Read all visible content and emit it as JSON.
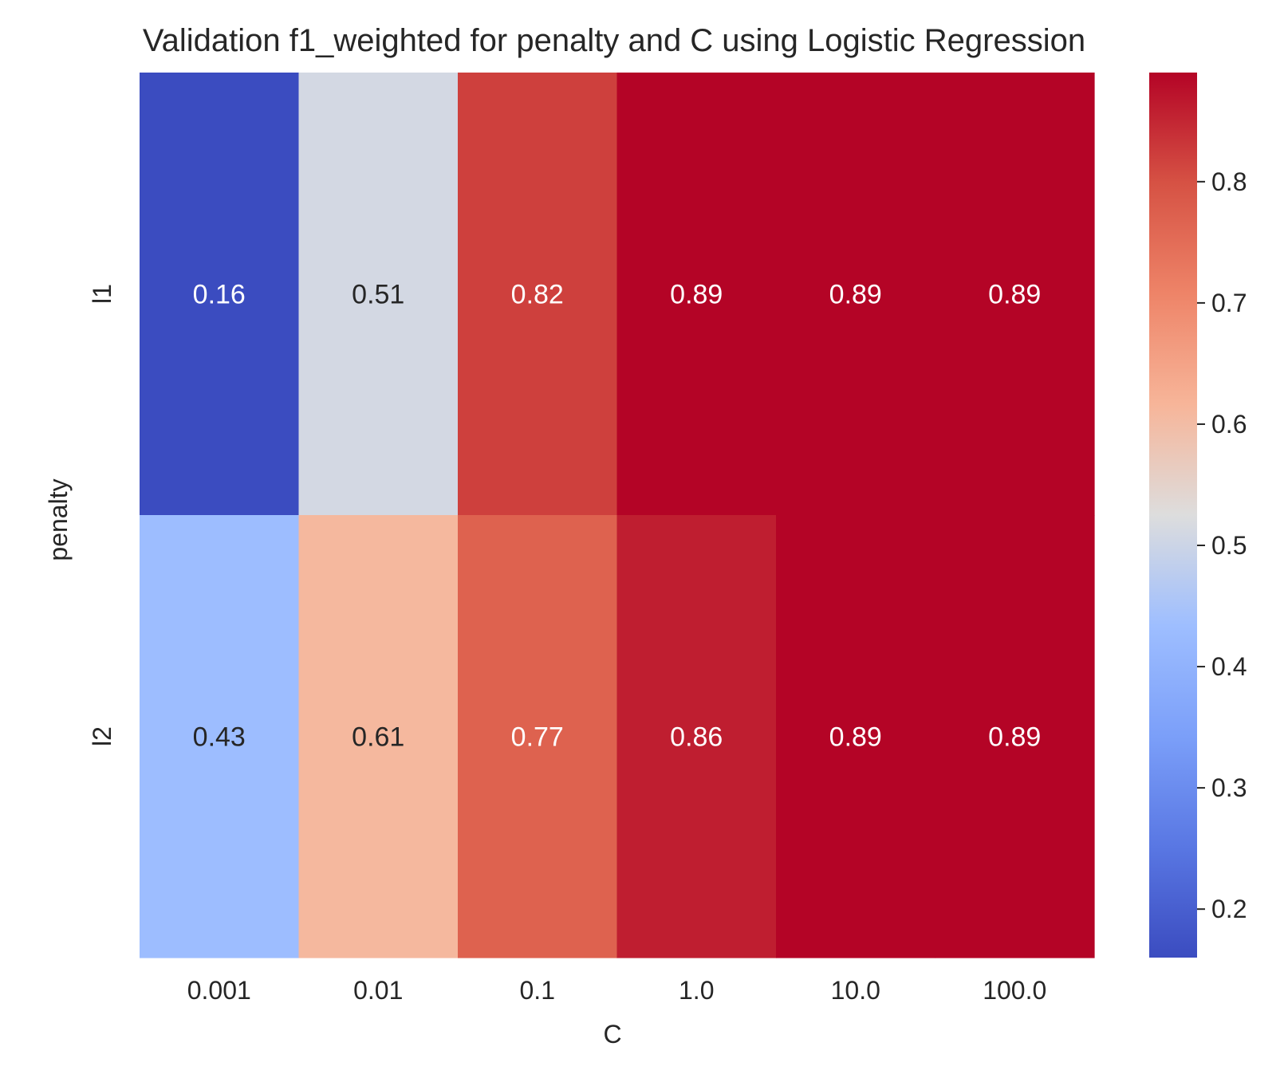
{
  "chart_data": {
    "type": "heatmap",
    "title": "Validation f1_weighted for penalty and C using Logistic Regression",
    "xlabel": "C",
    "ylabel": "penalty",
    "x_categories": [
      "0.001",
      "0.01",
      "0.1",
      "1.0",
      "10.0",
      "100.0"
    ],
    "y_categories": [
      "l1",
      "l2"
    ],
    "values": [
      [
        0.16,
        0.51,
        0.82,
        0.89,
        0.89,
        0.89
      ],
      [
        0.43,
        0.61,
        0.77,
        0.86,
        0.89,
        0.89
      ]
    ],
    "value_labels": [
      [
        "0.16",
        "0.51",
        "0.82",
        "0.89",
        "0.89",
        "0.89"
      ],
      [
        "0.43",
        "0.61",
        "0.77",
        "0.86",
        "0.89",
        "0.89"
      ]
    ],
    "colormap": "coolwarm",
    "colorbar": {
      "range": [
        0.16,
        0.89
      ],
      "ticks": [
        0.2,
        0.3,
        0.4,
        0.5,
        0.6,
        0.7,
        0.8
      ],
      "tick_labels": [
        "0.2",
        "0.3",
        "0.4",
        "0.5",
        "0.6",
        "0.7",
        "0.8"
      ]
    },
    "grid": false,
    "legend": "colorbar-right"
  }
}
